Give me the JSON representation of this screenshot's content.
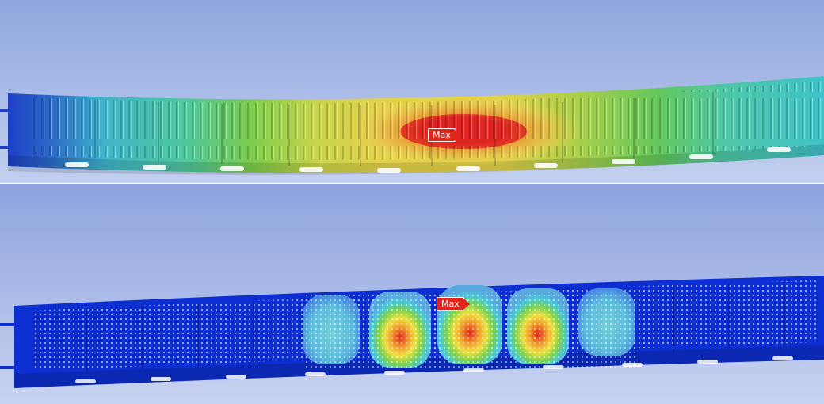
{
  "viewports": [
    {
      "name": "upper-result-view",
      "probe_label": "Max",
      "colors": {
        "background_top": "#8fa6df",
        "background_bottom": "#c3d0ef",
        "low": "#1d3fc6",
        "mid_low": "#3fc2c8",
        "mid": "#62c85e",
        "mid_high": "#e6d84b",
        "high": "#e8922f",
        "max": "#de2321"
      }
    },
    {
      "name": "lower-result-view",
      "probe_label": "Max",
      "colors": {
        "background_top": "#8ea3df",
        "background_bottom": "#c8d3f0",
        "low": "#0d2fd2",
        "mid_low": "#48c9d8",
        "mid": "#7fd34d",
        "mid_high": "#f0e040",
        "high": "#f09a2a",
        "max": "#e3241c"
      }
    }
  ]
}
